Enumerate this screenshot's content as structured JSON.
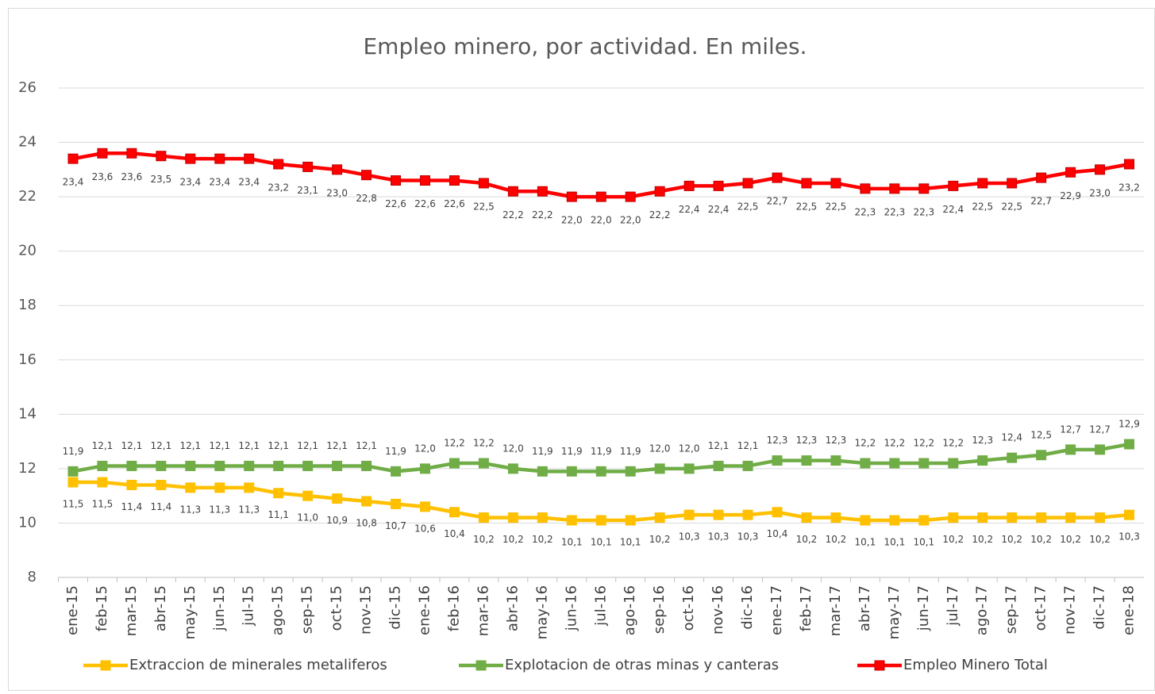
{
  "chart_data": {
    "type": "line",
    "title": "Empleo minero, por actividad. En miles.",
    "categories": [
      "ene-15",
      "feb-15",
      "mar-15",
      "abr-15",
      "may-15",
      "jun-15",
      "jul-15",
      "ago-15",
      "sep-15",
      "oct-15",
      "nov-15",
      "dic-15",
      "ene-16",
      "feb-16",
      "mar-16",
      "abr-16",
      "may-16",
      "jun-16",
      "jul-16",
      "ago-16",
      "sep-16",
      "oct-16",
      "nov-16",
      "dic-16",
      "ene-17",
      "feb-17",
      "mar-17",
      "abr-17",
      "may-17",
      "jun-17",
      "jul-17",
      "ago-17",
      "sep-17",
      "oct-17",
      "nov-17",
      "dic-17",
      "ene-18"
    ],
    "series": [
      {
        "name": "Extraccion de minerales metaliferos",
        "color": "#FFC000",
        "values": [
          11.5,
          11.5,
          11.4,
          11.4,
          11.3,
          11.3,
          11.3,
          11.1,
          11.0,
          10.9,
          10.8,
          10.7,
          10.6,
          10.4,
          10.2,
          10.2,
          10.2,
          10.1,
          10.1,
          10.1,
          10.2,
          10.3,
          10.3,
          10.3,
          10.4,
          10.2,
          10.2,
          10.1,
          10.1,
          10.1,
          10.2,
          10.2,
          10.2,
          10.2,
          10.2,
          10.2,
          10.3
        ],
        "value_labels": [
          "11,5",
          "11,5",
          "11,4",
          "11,4",
          "11,3",
          "11,3",
          "11,3",
          "11,1",
          "11,0",
          "10,9",
          "10,8",
          "10,7",
          "10,6",
          "10,4",
          "10,2",
          "10,2",
          "10,2",
          "10,1",
          "10,1",
          "10,1",
          "10,2",
          "10,3",
          "10,3",
          "10,3",
          "10,4",
          "10,2",
          "10,2",
          "10,1",
          "10,1",
          "10,1",
          "10,2",
          "10,2",
          "10,2",
          "10,2",
          "10,2",
          "10,2",
          "10,3"
        ]
      },
      {
        "name": "Explotacion de otras minas y canteras",
        "color": "#70AD47",
        "values": [
          11.9,
          12.1,
          12.1,
          12.1,
          12.1,
          12.1,
          12.1,
          12.1,
          12.1,
          12.1,
          12.1,
          11.9,
          12.0,
          12.2,
          12.2,
          12.0,
          11.9,
          11.9,
          11.9,
          11.9,
          12.0,
          12.0,
          12.1,
          12.1,
          12.3,
          12.3,
          12.3,
          12.2,
          12.2,
          12.2,
          12.2,
          12.3,
          12.4,
          12.5,
          12.7,
          12.7,
          12.9
        ],
        "value_labels": [
          "11,9",
          "12,1",
          "12,1",
          "12,1",
          "12,1",
          "12,1",
          "12,1",
          "12,1",
          "12,1",
          "12,1",
          "12,1",
          "11,9",
          "12,0",
          "12,2",
          "12,2",
          "12,0",
          "11,9",
          "11,9",
          "11,9",
          "11,9",
          "12,0",
          "12,0",
          "12,1",
          "12,1",
          "12,3",
          "12,3",
          "12,3",
          "12,2",
          "12,2",
          "12,2",
          "12,2",
          "12,3",
          "12,4",
          "12,5",
          "12,7",
          "12,7",
          "12,9"
        ]
      },
      {
        "name": "Empleo Minero Total",
        "color": "#FF0000",
        "values": [
          23.4,
          23.6,
          23.6,
          23.5,
          23.4,
          23.4,
          23.4,
          23.2,
          23.1,
          23.0,
          22.8,
          22.6,
          22.6,
          22.6,
          22.5,
          22.2,
          22.2,
          22.0,
          22.0,
          22.0,
          22.2,
          22.4,
          22.4,
          22.5,
          22.7,
          22.5,
          22.5,
          22.3,
          22.3,
          22.3,
          22.4,
          22.5,
          22.5,
          22.7,
          22.9,
          23.0,
          23.2
        ],
        "value_labels": [
          "23,4",
          "23,6",
          "23,6",
          "23,5",
          "23,4",
          "23,4",
          "23,4",
          "23,2",
          "23,1",
          "23,0",
          "22,8",
          "22,6",
          "22,6",
          "22,6",
          "22,5",
          "22,2",
          "22,2",
          "22,0",
          "22,0",
          "22,0",
          "22,2",
          "22,4",
          "22,4",
          "22,5",
          "22,7",
          "22,5",
          "22,5",
          "22,3",
          "22,3",
          "22,3",
          "22,4",
          "22,5",
          "22,5",
          "22,7",
          "22,9",
          "23,0",
          "23,2"
        ]
      }
    ],
    "ylim": [
      8,
      26
    ],
    "yticks": [
      8,
      10,
      12,
      14,
      16,
      18,
      20,
      22,
      24,
      26
    ],
    "grid": true,
    "legend": "bottom"
  }
}
